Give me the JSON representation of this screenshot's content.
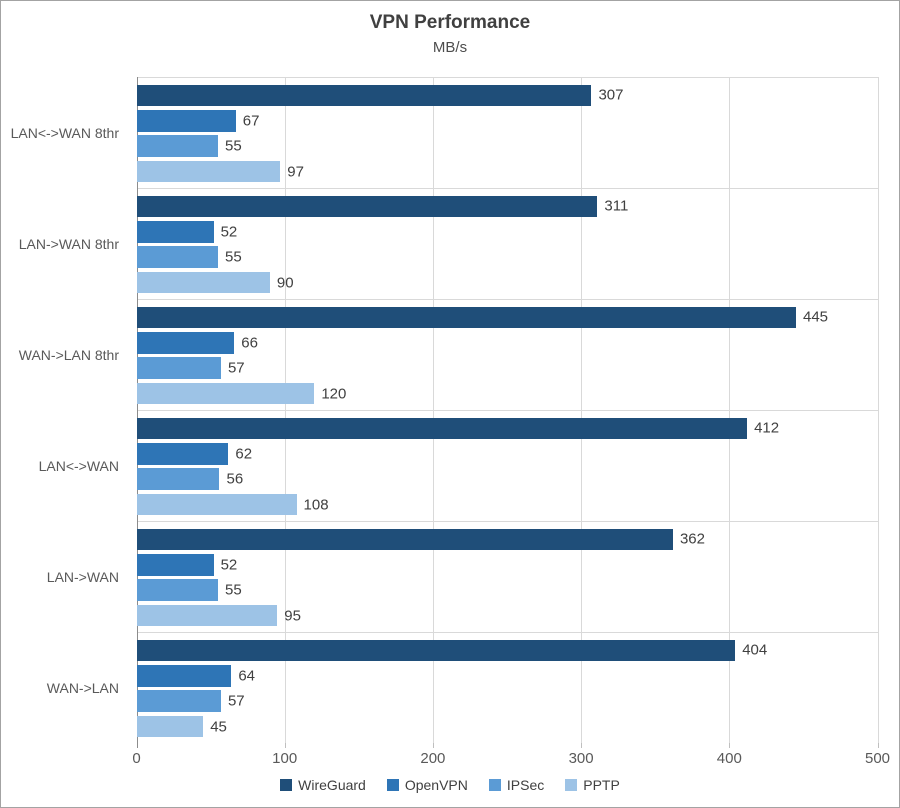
{
  "title": "VPN Performance",
  "subtitle": "MB/s",
  "chart_data": {
    "type": "bar",
    "orientation": "horizontal",
    "title": "VPN Performance",
    "subtitle": "MB/s",
    "unit": "MB/s",
    "categories": [
      "LAN<->WAN 8thr",
      "LAN->WAN 8thr",
      "WAN->LAN 8thr",
      "LAN<->WAN",
      "LAN->WAN",
      "WAN->LAN"
    ],
    "series": [
      {
        "name": "WireGuard",
        "color": "#1f4e79",
        "values": [
          307,
          311,
          445,
          412,
          362,
          404
        ]
      },
      {
        "name": "OpenVPN",
        "color": "#2e75b6",
        "values": [
          67,
          52,
          66,
          62,
          52,
          64
        ]
      },
      {
        "name": "IPSec",
        "color": "#5b9bd5",
        "values": [
          55,
          55,
          57,
          56,
          55,
          57
        ]
      },
      {
        "name": "PPTP",
        "color": "#9dc3e6",
        "values": [
          97,
          90,
          120,
          108,
          95,
          45
        ]
      }
    ],
    "xlim": [
      0,
      500
    ],
    "x_ticks": [
      0,
      100,
      200,
      300,
      400,
      500
    ],
    "value_labels_shown": true,
    "grid": true,
    "legend_position": "bottom"
  }
}
